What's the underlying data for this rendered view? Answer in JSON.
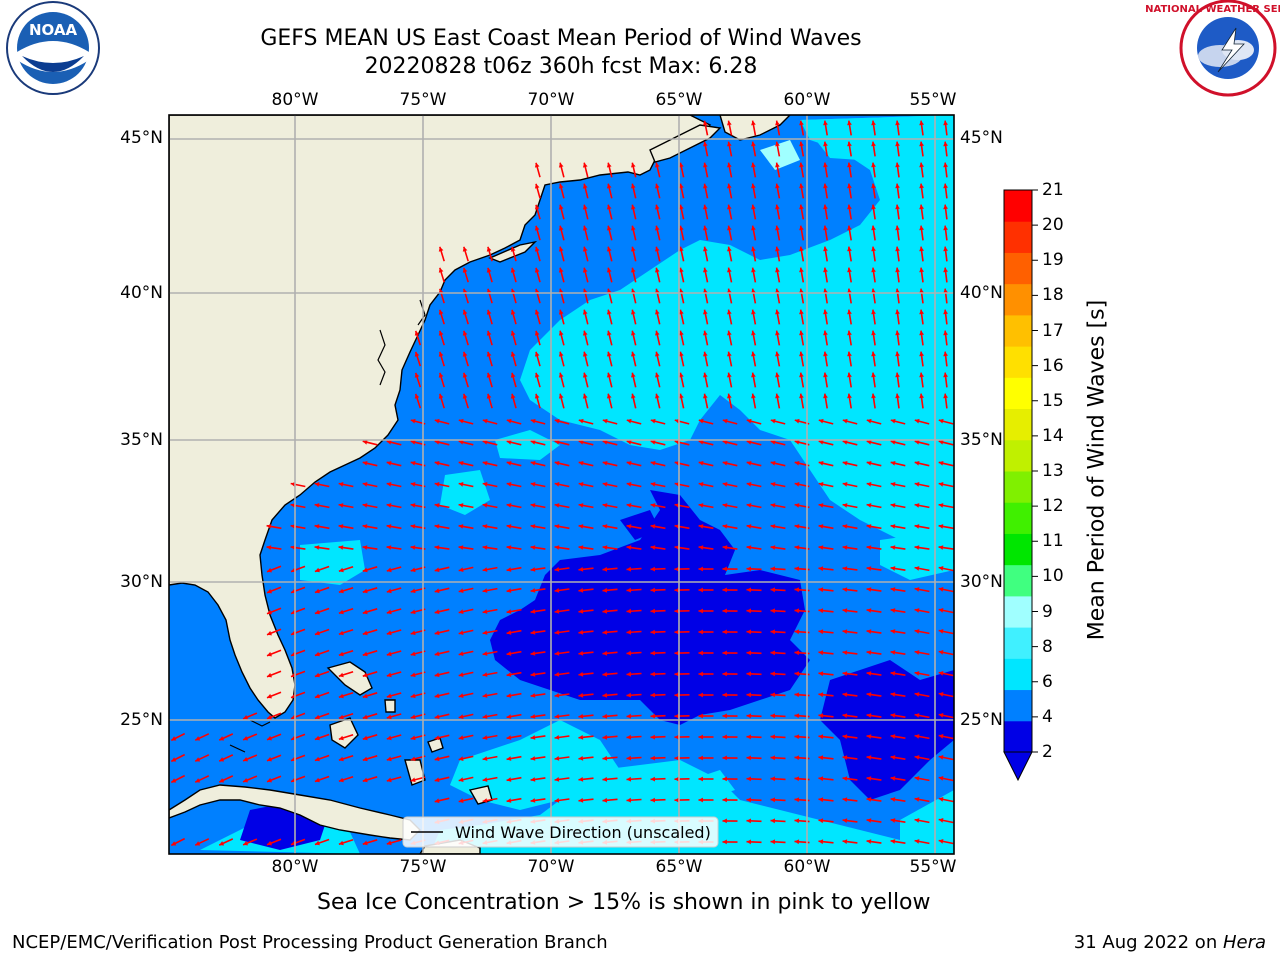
{
  "title": {
    "line1": "GEFS MEAN US East Coast Mean Period of Wind Waves",
    "line2": "20220828 t06z 360h fcst   Max: 6.28"
  },
  "map": {
    "lon_ticks": [
      "80°W",
      "75°W",
      "70°W",
      "65°W",
      "60°W",
      "55°W"
    ],
    "lat_ticks": [
      "45°N",
      "40°N",
      "35°N",
      "30°N",
      "25°N"
    ],
    "legend": "Wind Wave Direction (unscaled)",
    "vector_color": "#ff0000",
    "land_color": "#efeedc",
    "grid_color": "#b0b0b0"
  },
  "colorbar": {
    "title": "Mean Period of Wind Waves [s]",
    "labels": [
      "21",
      "20",
      "19",
      "18",
      "17",
      "16",
      "15",
      "14",
      "13",
      "12",
      "11",
      "10",
      "9",
      "8",
      "6",
      "4",
      "2"
    ],
    "colors": [
      "#0000e6",
      "#0080ff",
      "#00e6ff",
      "#40f0ff",
      "#a0ffff",
      "#40ff80",
      "#00e600",
      "#40f000",
      "#80f000",
      "#c0f000",
      "#e6ee00",
      "#ffff00",
      "#ffe000",
      "#ffc000",
      "#ff9000",
      "#ff6000",
      "#ff3000",
      "#ff0000"
    ]
  },
  "note": "Sea Ice Concentration > 15% is shown in pink to yellow",
  "footer": {
    "left": "NCEP/EMC/Verification Post Processing Product Generation Branch",
    "date": "31 Aug 2022 on ",
    "machine": "Hera"
  },
  "logos": {
    "noaa": "NOAA",
    "nws": "NATIONAL WEATHER SERVICE"
  }
}
